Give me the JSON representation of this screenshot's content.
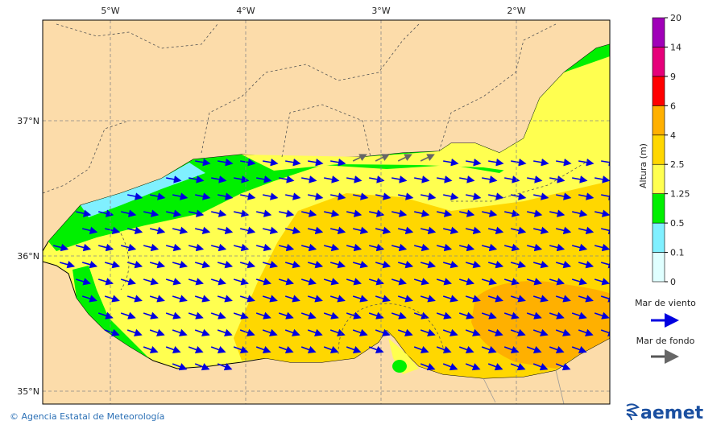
{
  "map": {
    "lon_labels": [
      "5°W",
      "4°W",
      "3°W",
      "2°W"
    ],
    "lat_labels": [
      "37°N",
      "36°N",
      "35°N"
    ]
  },
  "legend": {
    "title": "Altura (m)",
    "levels": [
      0,
      0.1,
      0.5,
      1.25,
      2.5,
      4,
      6,
      9,
      14,
      20
    ],
    "colors": [
      "#e0ffff",
      "#80f0ff",
      "#00f000",
      "#ffff50",
      "#ffd700",
      "#ffb000",
      "#ff0000",
      "#e6007a",
      "#a000b8"
    ],
    "wind_label": "Mar de viento",
    "wind_color": "#0000e0",
    "swell_label": "Mar de fondo",
    "swell_color": "#555555"
  },
  "footer": {
    "credit": "© Agencia Estatal de Meteorología",
    "logo": "aemet"
  }
}
